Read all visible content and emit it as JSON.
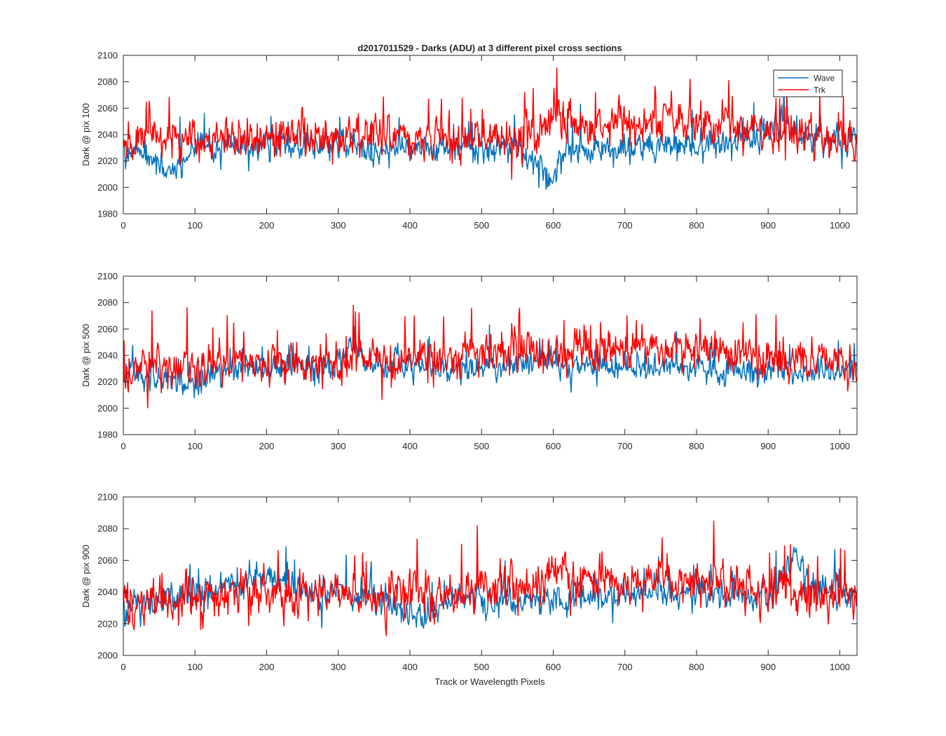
{
  "figure": {
    "title": "d2017011529 - Darks (ADU) at 3 different pixel cross sections",
    "xlabel": "Track or Wavelength Pixels"
  },
  "legend": {
    "placement": "top-right",
    "entries": [
      {
        "name": "Wave",
        "color": "#0072BD"
      },
      {
        "name": "Trk",
        "color": "#FF0000"
      }
    ]
  },
  "chart_data": [
    {
      "type": "line",
      "ylabel": "Dark @ pix 100",
      "xlim": [
        0,
        1024
      ],
      "ylim": [
        1980,
        2100
      ],
      "xticks": [
        0,
        100,
        200,
        300,
        400,
        500,
        600,
        700,
        800,
        900,
        1000
      ],
      "yticks": [
        1980,
        2000,
        2020,
        2040,
        2060,
        2080,
        2100
      ],
      "grid": false,
      "series": [
        {
          "name": "Wave",
          "color": "#0072BD",
          "x": [
            0,
            40,
            60,
            100,
            150,
            200,
            250,
            300,
            350,
            400,
            450,
            500,
            550,
            570,
            585,
            595,
            610,
            650,
            700,
            750,
            800,
            850,
            900,
            920,
            940,
            1024
          ],
          "y": [
            2027,
            2020,
            2010,
            2028,
            2032,
            2030,
            2031,
            2033,
            2028,
            2032,
            2030,
            2031,
            2030,
            2023,
            2012,
            2002,
            2020,
            2030,
            2031,
            2033,
            2032,
            2031,
            2042,
            2052,
            2040,
            2034
          ],
          "spread": 8
        },
        {
          "name": "Trk",
          "color": "#FF0000",
          "x": [
            0,
            100,
            200,
            300,
            400,
            500,
            560,
            590,
            600,
            640,
            700,
            750,
            800,
            850,
            900,
            1000,
            1024
          ],
          "y": [
            2035,
            2036,
            2035,
            2038,
            2037,
            2037,
            2040,
            2048,
            2056,
            2052,
            2048,
            2050,
            2048,
            2046,
            2040,
            2036,
            2034
          ],
          "spread": 11
        }
      ]
    },
    {
      "type": "line",
      "ylabel": "Dark @ pix 500",
      "xlim": [
        0,
        1024
      ],
      "ylim": [
        1980,
        2100
      ],
      "xticks": [
        0,
        100,
        200,
        300,
        400,
        500,
        600,
        700,
        800,
        900,
        1000
      ],
      "yticks": [
        1980,
        2000,
        2020,
        2040,
        2060,
        2080,
        2100
      ],
      "grid": false,
      "series": [
        {
          "name": "Wave",
          "color": "#0072BD",
          "x": [
            0,
            50,
            100,
            150,
            200,
            250,
            300,
            320,
            340,
            400,
            450,
            500,
            550,
            600,
            650,
            700,
            750,
            800,
            850,
            900,
            950,
            1024
          ],
          "y": [
            2028,
            2022,
            2018,
            2028,
            2032,
            2030,
            2034,
            2050,
            2036,
            2032,
            2031,
            2030,
            2036,
            2034,
            2032,
            2031,
            2030,
            2029,
            2028,
            2029,
            2028,
            2027
          ],
          "spread": 8
        },
        {
          "name": "Trk",
          "color": "#FF0000",
          "x": [
            0,
            100,
            200,
            300,
            400,
            500,
            560,
            600,
            650,
            700,
            750,
            800,
            850,
            900,
            1000,
            1024
          ],
          "y": [
            2030,
            2033,
            2034,
            2036,
            2038,
            2039,
            2046,
            2044,
            2043,
            2044,
            2045,
            2044,
            2042,
            2038,
            2036,
            2035
          ],
          "spread": 11
        }
      ]
    },
    {
      "type": "line",
      "ylabel": "Dark @ pix 900",
      "xlim": [
        0,
        1024
      ],
      "ylim": [
        2000,
        2100
      ],
      "xticks": [
        0,
        100,
        200,
        300,
        400,
        500,
        600,
        700,
        800,
        900,
        1000
      ],
      "yticks": [
        2000,
        2020,
        2040,
        2060,
        2080,
        2100
      ],
      "grid": false,
      "series": [
        {
          "name": "Wave",
          "color": "#0072BD",
          "x": [
            0,
            100,
            150,
            180,
            200,
            250,
            300,
            350,
            380,
            410,
            450,
            500,
            550,
            600,
            650,
            700,
            750,
            800,
            850,
            900,
            935,
            960,
            1024
          ],
          "y": [
            2034,
            2038,
            2042,
            2052,
            2046,
            2040,
            2040,
            2038,
            2030,
            2022,
            2034,
            2036,
            2035,
            2034,
            2036,
            2038,
            2040,
            2040,
            2038,
            2037,
            2064,
            2044,
            2037
          ],
          "spread": 7
        },
        {
          "name": "Trk",
          "color": "#FF0000",
          "x": [
            0,
            100,
            200,
            300,
            400,
            500,
            580,
            600,
            620,
            700,
            750,
            800,
            850,
            900,
            1000,
            1024
          ],
          "y": [
            2034,
            2036,
            2037,
            2039,
            2039,
            2040,
            2048,
            2056,
            2048,
            2046,
            2048,
            2046,
            2044,
            2042,
            2038,
            2036
          ],
          "spread": 10
        }
      ]
    }
  ]
}
